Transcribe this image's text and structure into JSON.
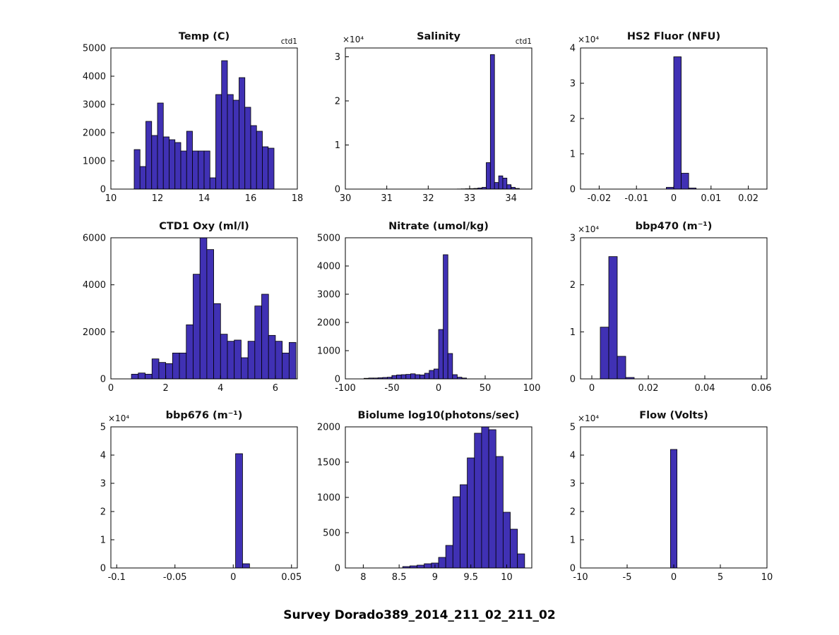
{
  "figure": {
    "title": "Survey Dorado389_2014_211_02_211_02",
    "background": "#ffffff",
    "bar_fill": "#4031b4",
    "bar_edge": "#000000",
    "axis_color": "#000000"
  },
  "chart_data": [
    {
      "type": "bar",
      "name": "temp",
      "title": "Temp (C)",
      "annotation": "ctd1",
      "xlabel": "",
      "ylabel": "",
      "xlim": [
        10,
        18
      ],
      "xticks": [
        10,
        12,
        14,
        16,
        18
      ],
      "xtick_labels": [
        "10",
        "12",
        "14",
        "16",
        "18"
      ],
      "ylim": [
        0,
        5000
      ],
      "yticks": [
        0,
        1000,
        2000,
        3000,
        4000,
        5000
      ],
      "ytick_labels": [
        "0",
        "1000",
        "2000",
        "3000",
        "4000",
        "5000"
      ],
      "y_exponent_label": null,
      "bin_start": 11.0,
      "bin_width": 0.25,
      "values": [
        1400,
        800,
        2400,
        1900,
        3050,
        1850,
        1750,
        1650,
        1350,
        2050,
        1350,
        1350,
        1350,
        400,
        3350,
        4550,
        3350,
        3150,
        3950,
        2900,
        2250,
        2050,
        1500,
        1450
      ]
    },
    {
      "type": "bar",
      "name": "salinity",
      "title": "Salinity",
      "annotation": "ctd1",
      "xlabel": "",
      "ylabel": "",
      "xlim": [
        30,
        34.5
      ],
      "xticks": [
        30,
        31,
        32,
        33,
        34
      ],
      "xtick_labels": [
        "30",
        "31",
        "32",
        "33",
        "34"
      ],
      "ylim": [
        0,
        32000
      ],
      "yticks": [
        0,
        10000,
        20000,
        30000
      ],
      "ytick_labels": [
        "0",
        "1",
        "2",
        "3"
      ],
      "y_exponent_label": "×10⁴",
      "bin_start": 32.7,
      "bin_width": 0.1,
      "values": [
        30,
        50,
        80,
        100,
        150,
        250,
        400,
        6000,
        30500,
        1500,
        3000,
        2500,
        1000,
        400,
        150
      ]
    },
    {
      "type": "bar",
      "name": "hs2-fluor",
      "title": "HS2 Fluor (NFU)",
      "annotation": null,
      "xlabel": "",
      "ylabel": "",
      "xlim": [
        -0.025,
        0.025
      ],
      "xticks": [
        -0.02,
        -0.01,
        0,
        0.01,
        0.02
      ],
      "xtick_labels": [
        "-0.02",
        "-0.01",
        "0",
        "0.01",
        "0.02"
      ],
      "ylim": [
        0,
        40000
      ],
      "yticks": [
        0,
        10000,
        20000,
        30000,
        40000
      ],
      "ytick_labels": [
        "0",
        "1",
        "2",
        "3",
        "4"
      ],
      "y_exponent_label": "×10⁴",
      "bin_start": -0.002,
      "bin_width": 0.002,
      "values": [
        500,
        37500,
        4500,
        300
      ]
    },
    {
      "type": "bar",
      "name": "ctd1-oxy",
      "title": "CTD1 Oxy (ml/l)",
      "annotation": null,
      "xlabel": "",
      "ylabel": "",
      "xlim": [
        0,
        6.8
      ],
      "xticks": [
        0,
        2,
        4,
        6
      ],
      "xtick_labels": [
        "0",
        "2",
        "4",
        "6"
      ],
      "ylim": [
        0,
        6000
      ],
      "yticks": [
        0,
        2000,
        4000,
        6000
      ],
      "ytick_labels": [
        "0",
        "2000",
        "4000",
        "6000"
      ],
      "y_exponent_label": null,
      "bin_start": 0.75,
      "bin_width": 0.25,
      "values": [
        200,
        250,
        200,
        850,
        700,
        650,
        1100,
        1100,
        2300,
        4450,
        6000,
        5500,
        3200,
        1900,
        1600,
        1650,
        900,
        1600,
        3100,
        3600,
        1850,
        1600,
        1100,
        1550
      ]
    },
    {
      "type": "bar",
      "name": "nitrate",
      "title": "Nitrate (umol/kg)",
      "annotation": null,
      "xlabel": "",
      "ylabel": "",
      "xlim": [
        -100,
        100
      ],
      "xticks": [
        -100,
        -50,
        0,
        50,
        100
      ],
      "xtick_labels": [
        "-100",
        "-50",
        "0",
        "50",
        "100"
      ],
      "ylim": [
        0,
        5000
      ],
      "yticks": [
        0,
        1000,
        2000,
        3000,
        4000,
        5000
      ],
      "ytick_labels": [
        "0",
        "1000",
        "2000",
        "3000",
        "4000",
        "5000"
      ],
      "y_exponent_label": null,
      "bin_start": -80,
      "bin_width": 5,
      "values": [
        20,
        30,
        30,
        40,
        50,
        60,
        120,
        140,
        150,
        160,
        180,
        150,
        140,
        200,
        300,
        350,
        1750,
        4400,
        900,
        150,
        60,
        30
      ]
    },
    {
      "type": "bar",
      "name": "bbp470",
      "title": "bbp470 (m⁻¹)",
      "annotation": null,
      "xlabel": "",
      "ylabel": "",
      "xlim": [
        -0.004,
        0.062
      ],
      "xticks": [
        0,
        0.02,
        0.04,
        0.06
      ],
      "xtick_labels": [
        "0",
        "0.02",
        "0.04",
        "0.06"
      ],
      "ylim": [
        0,
        30000
      ],
      "yticks": [
        0,
        10000,
        20000,
        30000
      ],
      "ytick_labels": [
        "0",
        "1",
        "2",
        "3"
      ],
      "y_exponent_label": "×10⁴",
      "bin_start": 0.003,
      "bin_width": 0.003,
      "values": [
        11000,
        26000,
        4800,
        300
      ]
    },
    {
      "type": "bar",
      "name": "bbp676",
      "title": "bbp676 (m⁻¹)",
      "annotation": null,
      "xlabel": "",
      "ylabel": "",
      "xlim": [
        -0.105,
        0.055
      ],
      "xticks": [
        -0.1,
        -0.05,
        0,
        0.05
      ],
      "xtick_labels": [
        "-0.1",
        "-0.05",
        "0",
        "0.05"
      ],
      "ylim": [
        0,
        50000
      ],
      "yticks": [
        0,
        10000,
        20000,
        30000,
        40000,
        50000
      ],
      "ytick_labels": [
        "0",
        "1",
        "2",
        "3",
        "4",
        "5"
      ],
      "y_exponent_label": "×10⁴",
      "bin_start": 0.002,
      "bin_width": 0.006,
      "values": [
        40500,
        1500
      ]
    },
    {
      "type": "bar",
      "name": "biolume",
      "title": "Biolume log10(photons/sec)",
      "annotation": null,
      "xlabel": "",
      "ylabel": "",
      "xlim": [
        7.75,
        10.35
      ],
      "xticks": [
        8,
        8.5,
        9,
        9.5,
        10
      ],
      "xtick_labels": [
        "8",
        "8.5",
        "9",
        "9.5",
        "10"
      ],
      "ylim": [
        0,
        2000
      ],
      "yticks": [
        0,
        500,
        1000,
        1500,
        2000
      ],
      "ytick_labels": [
        "0",
        "500",
        "1000",
        "1500",
        "2000"
      ],
      "y_exponent_label": null,
      "bin_start": 8.55,
      "bin_width": 0.1,
      "values": [
        20,
        30,
        40,
        60,
        70,
        150,
        320,
        1010,
        1180,
        1560,
        1910,
        2000,
        1960,
        1580,
        790,
        550,
        200
      ]
    },
    {
      "type": "bar",
      "name": "flow",
      "title": "Flow (Volts)",
      "annotation": null,
      "xlabel": "",
      "ylabel": "",
      "xlim": [
        -10,
        10
      ],
      "xticks": [
        -10,
        -5,
        0,
        5,
        10
      ],
      "xtick_labels": [
        "-10",
        "-5",
        "0",
        "5",
        "10"
      ],
      "ylim": [
        0,
        50000
      ],
      "yticks": [
        0,
        10000,
        20000,
        30000,
        40000,
        50000
      ],
      "ytick_labels": [
        "0",
        "1",
        "2",
        "3",
        "4",
        "5"
      ],
      "y_exponent_label": "×10⁴",
      "bin_start": -0.35,
      "bin_width": 0.7,
      "values": [
        42000
      ]
    }
  ]
}
